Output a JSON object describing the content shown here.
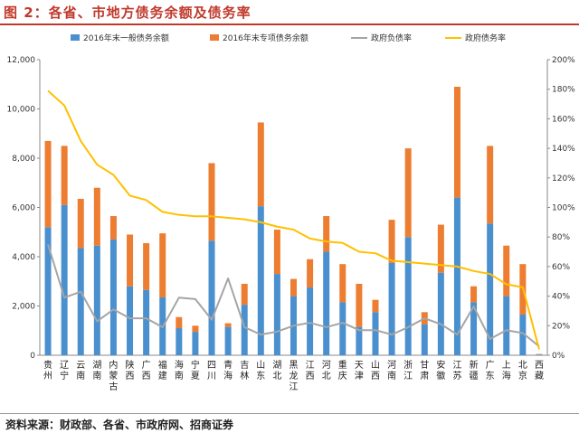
{
  "title": "图 2：各省、市地方债务余额及债务率",
  "source": "资料来源：财政部、各省、市政府网、招商证券",
  "colors": {
    "general_debt": "#4a90cf",
    "special_debt": "#ed7d31",
    "debt_ratio_fiscal": "#a5a5a5",
    "debt_ratio_gov": "#ffc000",
    "title_red": "#c0392b"
  },
  "chart_data": {
    "type": "bar",
    "stacked": true,
    "categories": [
      "贵州",
      "辽宁",
      "云南",
      "湖南",
      "内蒙古",
      "陕西",
      "广西",
      "福建",
      "海南",
      "宁夏",
      "四川",
      "青海",
      "吉林",
      "山东",
      "湖北",
      "黑龙江",
      "江西",
      "河北",
      "重庆",
      "天津",
      "山西",
      "河南",
      "浙江",
      "甘肃",
      "安徽",
      "江苏",
      "新疆",
      "广东",
      "上海",
      "北京",
      "西藏"
    ],
    "series": [
      {
        "name": "2016年末一般债务余额",
        "axis": "left",
        "values": [
          5200,
          6100,
          4350,
          4450,
          4700,
          2800,
          2650,
          2350,
          1100,
          950,
          4650,
          1150,
          2050,
          6050,
          3300,
          2400,
          2750,
          4200,
          2150,
          1150,
          1750,
          3750,
          4800,
          1250,
          3350,
          6400,
          2150,
          5350,
          2400,
          1650,
          30
        ]
      },
      {
        "name": "2016年末专项债务余额",
        "axis": "left",
        "values": [
          3500,
          2400,
          2000,
          2350,
          950,
          2100,
          1900,
          2600,
          450,
          250,
          3150,
          150,
          850,
          3400,
          1800,
          700,
          1150,
          1450,
          1550,
          1750,
          500,
          1750,
          3600,
          500,
          1950,
          4500,
          650,
          3150,
          2050,
          2050,
          20
        ]
      },
      {
        "name": "政府负债率",
        "axis": "right",
        "values": [
          75,
          39,
          43,
          23,
          31,
          25,
          25,
          19,
          39,
          38,
          24,
          52,
          19,
          14,
          16,
          20,
          22,
          19,
          22,
          17,
          17,
          14,
          19,
          25,
          21,
          14,
          33,
          11,
          17,
          15,
          6
        ]
      },
      {
        "name": "政府债务率",
        "axis": "right",
        "values": [
          179,
          169,
          145,
          129,
          122,
          108,
          105,
          97,
          95,
          94,
          94,
          93,
          92,
          90,
          87,
          85,
          79,
          77,
          76,
          70,
          69,
          64,
          63,
          62,
          61,
          60,
          57,
          55,
          48,
          46,
          4
        ]
      }
    ],
    "left_axis": {
      "min": 0,
      "max": 12000,
      "ticks": [
        "0",
        "2,000",
        "4,000",
        "6,000",
        "8,000",
        "10,000",
        "12,000"
      ]
    },
    "right_axis": {
      "min": 0,
      "max": 200,
      "ticks": [
        "0%",
        "20%",
        "40%",
        "60%",
        "80%",
        "100%",
        "120%",
        "140%",
        "160%",
        "180%",
        "200%"
      ]
    },
    "legend_position": "top",
    "grid": false
  }
}
